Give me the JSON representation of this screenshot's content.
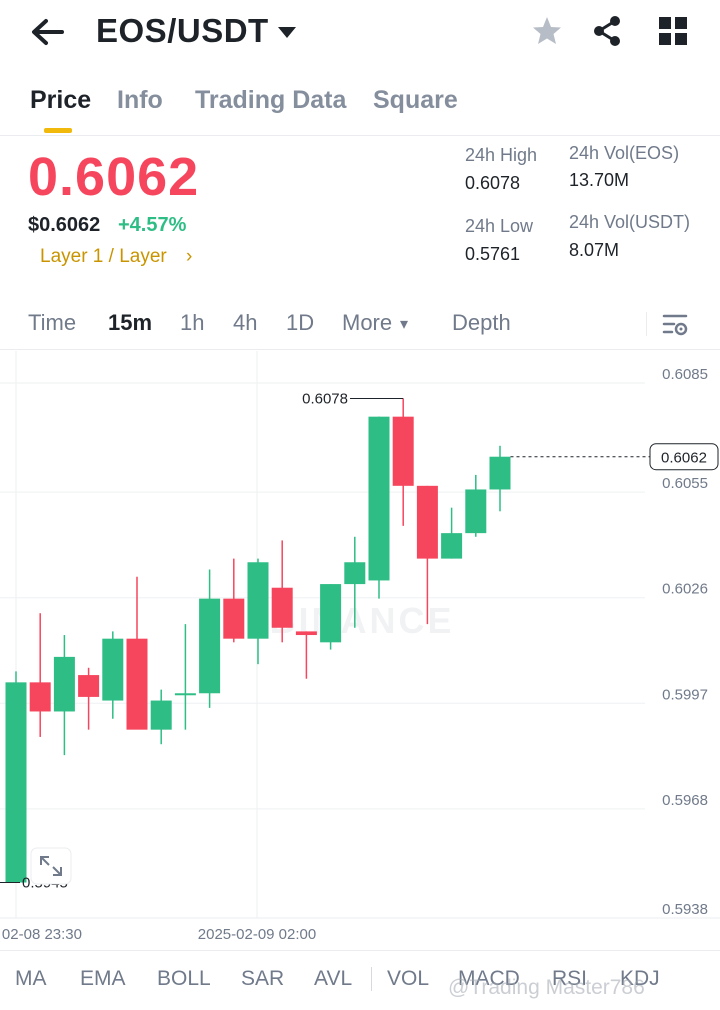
{
  "header": {
    "pair": "EOS/USDT",
    "icons": [
      "back-arrow-icon",
      "caret-down-icon",
      "star-icon",
      "share-icon",
      "grid-icon"
    ]
  },
  "tabs": [
    {
      "label": "Price",
      "active": true
    },
    {
      "label": "Info",
      "active": false
    },
    {
      "label": "Trading Data",
      "active": false
    },
    {
      "label": "Square",
      "active": false
    }
  ],
  "price": {
    "last": "0.6062",
    "usd": "$0.6062",
    "change": "+4.57%",
    "tag": "Layer 1 / Layer",
    "tag_chevron": "›"
  },
  "stats": {
    "high_label": "24h High",
    "high_value": "0.6078",
    "low_label": "24h Low",
    "low_value": "0.5761",
    "vol_eos_label": "24h Vol(EOS)",
    "vol_eos_value": "13.70M",
    "vol_usdt_label": "24h Vol(USDT)",
    "vol_usdt_value": "8.07M"
  },
  "intervals": {
    "time": "Time",
    "m15": "15m",
    "h1": "1h",
    "h4": "4h",
    "d1": "1D",
    "more": "More",
    "more_caret": "▾",
    "depth": "Depth",
    "active": "15m"
  },
  "chart_data": {
    "type": "candlestick",
    "y_ticks": [
      "0.6085",
      "0.6055",
      "0.6026",
      "0.5997",
      "0.5968",
      "0.5938"
    ],
    "ylim": [
      0.5938,
      0.6085
    ],
    "x_labels": [
      "02-08 23:30",
      "2025-02-09 02:00"
    ],
    "last_price_label": "0.6062",
    "last_price": 0.6062,
    "max_label": "0.6078",
    "max_price": 0.6078,
    "min_label": "0.5945",
    "min_price": 0.5945,
    "watermark": "BINANCE",
    "colors": {
      "up": "#2ebd85",
      "down": "#f6465d"
    },
    "candles": [
      {
        "o": 0.5945,
        "h": 0.6003,
        "l": 0.5945,
        "c": 0.6
      },
      {
        "o": 0.6,
        "h": 0.6019,
        "l": 0.5985,
        "c": 0.5992
      },
      {
        "o": 0.5992,
        "h": 0.6013,
        "l": 0.598,
        "c": 0.6007
      },
      {
        "o": 0.6002,
        "h": 0.6004,
        "l": 0.5987,
        "c": 0.5996
      },
      {
        "o": 0.5995,
        "h": 0.6014,
        "l": 0.599,
        "c": 0.6012
      },
      {
        "o": 0.6012,
        "h": 0.6029,
        "l": 0.5988,
        "c": 0.5987
      },
      {
        "o": 0.5987,
        "h": 0.5998,
        "l": 0.5983,
        "c": 0.5995
      },
      {
        "o": 0.5997,
        "h": 0.6016,
        "l": 0.5987,
        "c": 0.5997
      },
      {
        "o": 0.5997,
        "h": 0.6031,
        "l": 0.5993,
        "c": 0.6023
      },
      {
        "o": 0.6023,
        "h": 0.6034,
        "l": 0.6011,
        "c": 0.6012
      },
      {
        "o": 0.6012,
        "h": 0.6034,
        "l": 0.6005,
        "c": 0.6033
      },
      {
        "o": 0.6026,
        "h": 0.6039,
        "l": 0.6011,
        "c": 0.6015
      },
      {
        "o": 0.6014,
        "h": 0.6014,
        "l": 0.6001,
        "c": 0.6013
      },
      {
        "o": 0.6011,
        "h": 0.6027,
        "l": 0.6009,
        "c": 0.6027
      },
      {
        "o": 0.6027,
        "h": 0.604,
        "l": 0.6015,
        "c": 0.6033
      },
      {
        "o": 0.6028,
        "h": 0.6073,
        "l": 0.6023,
        "c": 0.6073
      },
      {
        "o": 0.6073,
        "h": 0.6078,
        "l": 0.6043,
        "c": 0.6054
      },
      {
        "o": 0.6054,
        "h": 0.6054,
        "l": 0.6016,
        "c": 0.6034
      },
      {
        "o": 0.6034,
        "h": 0.6048,
        "l": 0.6034,
        "c": 0.6041
      },
      {
        "o": 0.6041,
        "h": 0.6057,
        "l": 0.604,
        "c": 0.6053
      },
      {
        "o": 0.6053,
        "h": 0.6065,
        "l": 0.6047,
        "c": 0.6062
      }
    ]
  },
  "indicators": [
    "MA",
    "EMA",
    "BOLL",
    "SAR",
    "AVL",
    "VOL",
    "MACD",
    "RSI",
    "KDJ"
  ],
  "watermark_text": "@Trading Master786"
}
